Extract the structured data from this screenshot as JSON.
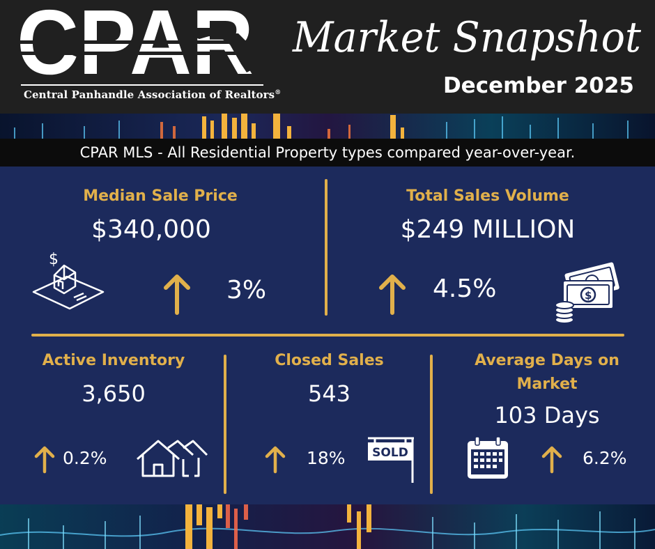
{
  "header": {
    "logo_text": "CPAR",
    "logo_subtitle": "Central Panhandle Association of Realtors",
    "registered_mark": "®",
    "title": "Market Snapshot",
    "date": "December 2025"
  },
  "subtitle": "CPAR MLS - All Residential Property types compared year-over-year.",
  "colors": {
    "gold": "#e1b04b",
    "navy": "#1c2a5c",
    "header_bg": "#202020",
    "white": "#ffffff"
  },
  "stats": {
    "median_sale_price": {
      "label": "Median Sale Price",
      "value": "$340,000",
      "change": "3%",
      "direction": "up",
      "icon": "house-dollar-icon"
    },
    "total_sales_volume": {
      "label": "Total Sales Volume",
      "value": "$249 MILLION",
      "change": "4.5%",
      "direction": "up",
      "icon": "money-coins-icon"
    },
    "active_inventory": {
      "label": "Active Inventory",
      "value": "3,650",
      "change": "0.2%",
      "direction": "up",
      "icon": "houses-icon"
    },
    "closed_sales": {
      "label": "Closed Sales",
      "value": "543",
      "change": "18%",
      "direction": "up",
      "icon": "sold-sign-icon",
      "sign_text": "SOLD"
    },
    "average_days_on_market": {
      "label_line1": "Average Days on",
      "label_line2": "Market",
      "value": "103 Days",
      "change": "6.2%",
      "direction": "up",
      "icon": "calendar-icon"
    }
  }
}
